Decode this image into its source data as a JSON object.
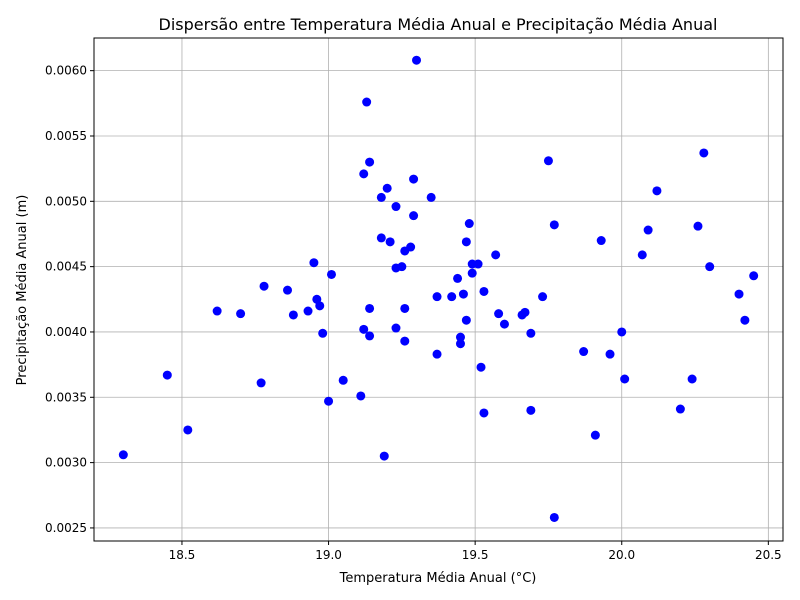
{
  "chart_data": {
    "type": "scatter",
    "title": "Dispersão entre Temperatura Média Anual e Precipitação Média Anual",
    "xlabel": "Temperatura Média Anual (°C)",
    "ylabel": "Precipitação Média Anual (m)",
    "xlim": [
      18.2,
      20.55
    ],
    "ylim": [
      0.0024,
      0.00625
    ],
    "xticks": [
      18.5,
      19.0,
      19.5,
      20.0,
      20.5
    ],
    "xtick_labels": [
      "18.5",
      "19.0",
      "19.5",
      "20.0",
      "20.5"
    ],
    "yticks": [
      0.0025,
      0.003,
      0.0035,
      0.004,
      0.0045,
      0.005,
      0.0055,
      0.006
    ],
    "ytick_labels": [
      "0.0025",
      "0.0030",
      "0.0035",
      "0.0040",
      "0.0045",
      "0.0050",
      "0.0055",
      "0.0060"
    ],
    "grid": true,
    "marker_color": "#0000ff",
    "points": [
      [
        18.3,
        0.00306
      ],
      [
        18.45,
        0.00367
      ],
      [
        18.52,
        0.00325
      ],
      [
        18.62,
        0.00416
      ],
      [
        18.7,
        0.00414
      ],
      [
        18.77,
        0.00361
      ],
      [
        18.78,
        0.00435
      ],
      [
        18.86,
        0.00432
      ],
      [
        18.88,
        0.00413
      ],
      [
        18.93,
        0.00416
      ],
      [
        18.95,
        0.00453
      ],
      [
        18.96,
        0.00425
      ],
      [
        18.97,
        0.0042
      ],
      [
        18.98,
        0.00399
      ],
      [
        19.0,
        0.00347
      ],
      [
        19.01,
        0.00444
      ],
      [
        19.05,
        0.00363
      ],
      [
        19.11,
        0.00351
      ],
      [
        19.12,
        0.00521
      ],
      [
        19.12,
        0.00402
      ],
      [
        19.13,
        0.00576
      ],
      [
        19.14,
        0.0053
      ],
      [
        19.14,
        0.00418
      ],
      [
        19.14,
        0.00397
      ],
      [
        19.18,
        0.00472
      ],
      [
        19.18,
        0.00503
      ],
      [
        19.19,
        0.00305
      ],
      [
        19.2,
        0.0051
      ],
      [
        19.21,
        0.00469
      ],
      [
        19.23,
        0.00449
      ],
      [
        19.23,
        0.00496
      ],
      [
        19.23,
        0.00403
      ],
      [
        19.25,
        0.0045
      ],
      [
        19.26,
        0.00462
      ],
      [
        19.26,
        0.00418
      ],
      [
        19.26,
        0.00393
      ],
      [
        19.28,
        0.00465
      ],
      [
        19.29,
        0.00517
      ],
      [
        19.29,
        0.00489
      ],
      [
        19.3,
        0.00608
      ],
      [
        19.35,
        0.00503
      ],
      [
        19.37,
        0.00427
      ],
      [
        19.37,
        0.00383
      ],
      [
        19.42,
        0.00427
      ],
      [
        19.44,
        0.00441
      ],
      [
        19.45,
        0.00396
      ],
      [
        19.45,
        0.00391
      ],
      [
        19.46,
        0.00429
      ],
      [
        19.47,
        0.00469
      ],
      [
        19.47,
        0.00409
      ],
      [
        19.48,
        0.00483
      ],
      [
        19.49,
        0.00445
      ],
      [
        19.49,
        0.00452
      ],
      [
        19.51,
        0.00452
      ],
      [
        19.52,
        0.00373
      ],
      [
        19.53,
        0.00431
      ],
      [
        19.53,
        0.00338
      ],
      [
        19.57,
        0.00459
      ],
      [
        19.58,
        0.00414
      ],
      [
        19.6,
        0.00406
      ],
      [
        19.66,
        0.00413
      ],
      [
        19.67,
        0.00415
      ],
      [
        19.69,
        0.00399
      ],
      [
        19.69,
        0.0034
      ],
      [
        19.73,
        0.00427
      ],
      [
        19.75,
        0.00531
      ],
      [
        19.77,
        0.00482
      ],
      [
        19.77,
        0.00258
      ],
      [
        19.87,
        0.00385
      ],
      [
        19.91,
        0.00321
      ],
      [
        19.93,
        0.0047
      ],
      [
        19.96,
        0.00383
      ],
      [
        20.0,
        0.004
      ],
      [
        20.01,
        0.00364
      ],
      [
        20.07,
        0.00459
      ],
      [
        20.09,
        0.00478
      ],
      [
        20.12,
        0.00508
      ],
      [
        20.2,
        0.00341
      ],
      [
        20.24,
        0.00364
      ],
      [
        20.26,
        0.00481
      ],
      [
        20.28,
        0.00537
      ],
      [
        20.3,
        0.0045
      ],
      [
        20.4,
        0.00429
      ],
      [
        20.42,
        0.00409
      ],
      [
        20.45,
        0.00443
      ]
    ]
  }
}
